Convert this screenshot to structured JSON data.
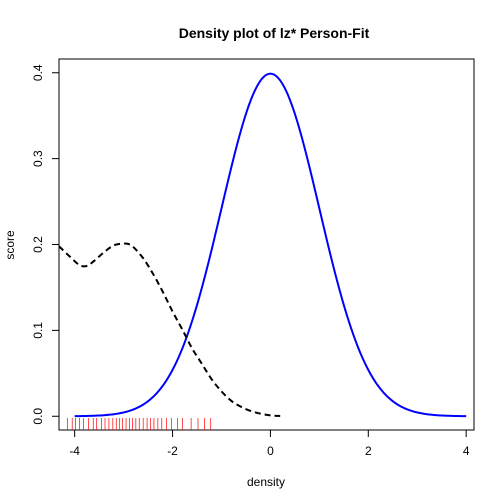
{
  "chart_data": {
    "type": "line",
    "title": "Density plot of lz* Person-Fit",
    "xlabel": "density",
    "ylabel": "score",
    "xlim": [
      -4.32,
      4.16
    ],
    "ylim": [
      -0.016,
      0.416
    ],
    "x_ticks": [
      -4,
      -2,
      0,
      2,
      4
    ],
    "x_tick_labels": [
      "-4",
      "-2",
      "0",
      "2",
      "4"
    ],
    "y_ticks": [
      0.0,
      0.1,
      0.2,
      0.3,
      0.4
    ],
    "y_tick_labels": [
      "0.0",
      "0.1",
      "0.2",
      "0.3",
      "0.4"
    ],
    "grid": false,
    "series": [
      {
        "style": "solid",
        "color": "#0000ff",
        "kind": "standard-normal-density",
        "x_range": [
          -4,
          4
        ],
        "points_x": [
          -4,
          -3.5,
          -3,
          -2.5,
          -2,
          -1.5,
          -1,
          -0.5,
          0,
          0.5,
          1,
          1.5,
          2,
          2.5,
          3,
          3.5,
          4
        ],
        "points_y": [
          0.0001,
          0.0009,
          0.0044,
          0.0175,
          0.054,
          0.1295,
          0.242,
          0.3521,
          0.3989,
          0.3521,
          0.242,
          0.1295,
          0.054,
          0.0175,
          0.0044,
          0.0009,
          0.0001
        ]
      },
      {
        "style": "dashed",
        "color": "#000000",
        "kind": "kernel-density-estimate",
        "points_x": [
          -4.32,
          -4.1,
          -3.9,
          -3.75,
          -3.6,
          -3.4,
          -3.2,
          -3.0,
          -2.9,
          -2.8,
          -2.6,
          -2.4,
          -2.2,
          -2.0,
          -1.8,
          -1.6,
          -1.4,
          -1.2,
          -1.0,
          -0.8,
          -0.6,
          -0.4,
          -0.2,
          0.0,
          0.2
        ],
        "points_y": [
          0.198,
          0.186,
          0.176,
          0.175,
          0.181,
          0.191,
          0.199,
          0.201,
          0.2005,
          0.197,
          0.184,
          0.166,
          0.145,
          0.122,
          0.101,
          0.079,
          0.061,
          0.043,
          0.029,
          0.018,
          0.011,
          0.006,
          0.003,
          0.001,
          0.0003
        ]
      }
    ],
    "rug": {
      "color": "#ff0000",
      "values": [
        -4.15,
        -4.05,
        -3.98,
        -3.9,
        -3.82,
        -3.72,
        -3.62,
        -3.55,
        -3.45,
        -3.38,
        -3.3,
        -3.22,
        -3.15,
        -3.08,
        -3.02,
        -2.95,
        -2.88,
        -2.82,
        -2.75,
        -2.68,
        -2.6,
        -2.52,
        -2.45,
        -2.38,
        -2.3,
        -2.22,
        -2.12,
        -2.02,
        -1.9,
        -1.8,
        -1.62,
        -1.48,
        -1.35,
        -1.22
      ]
    }
  }
}
